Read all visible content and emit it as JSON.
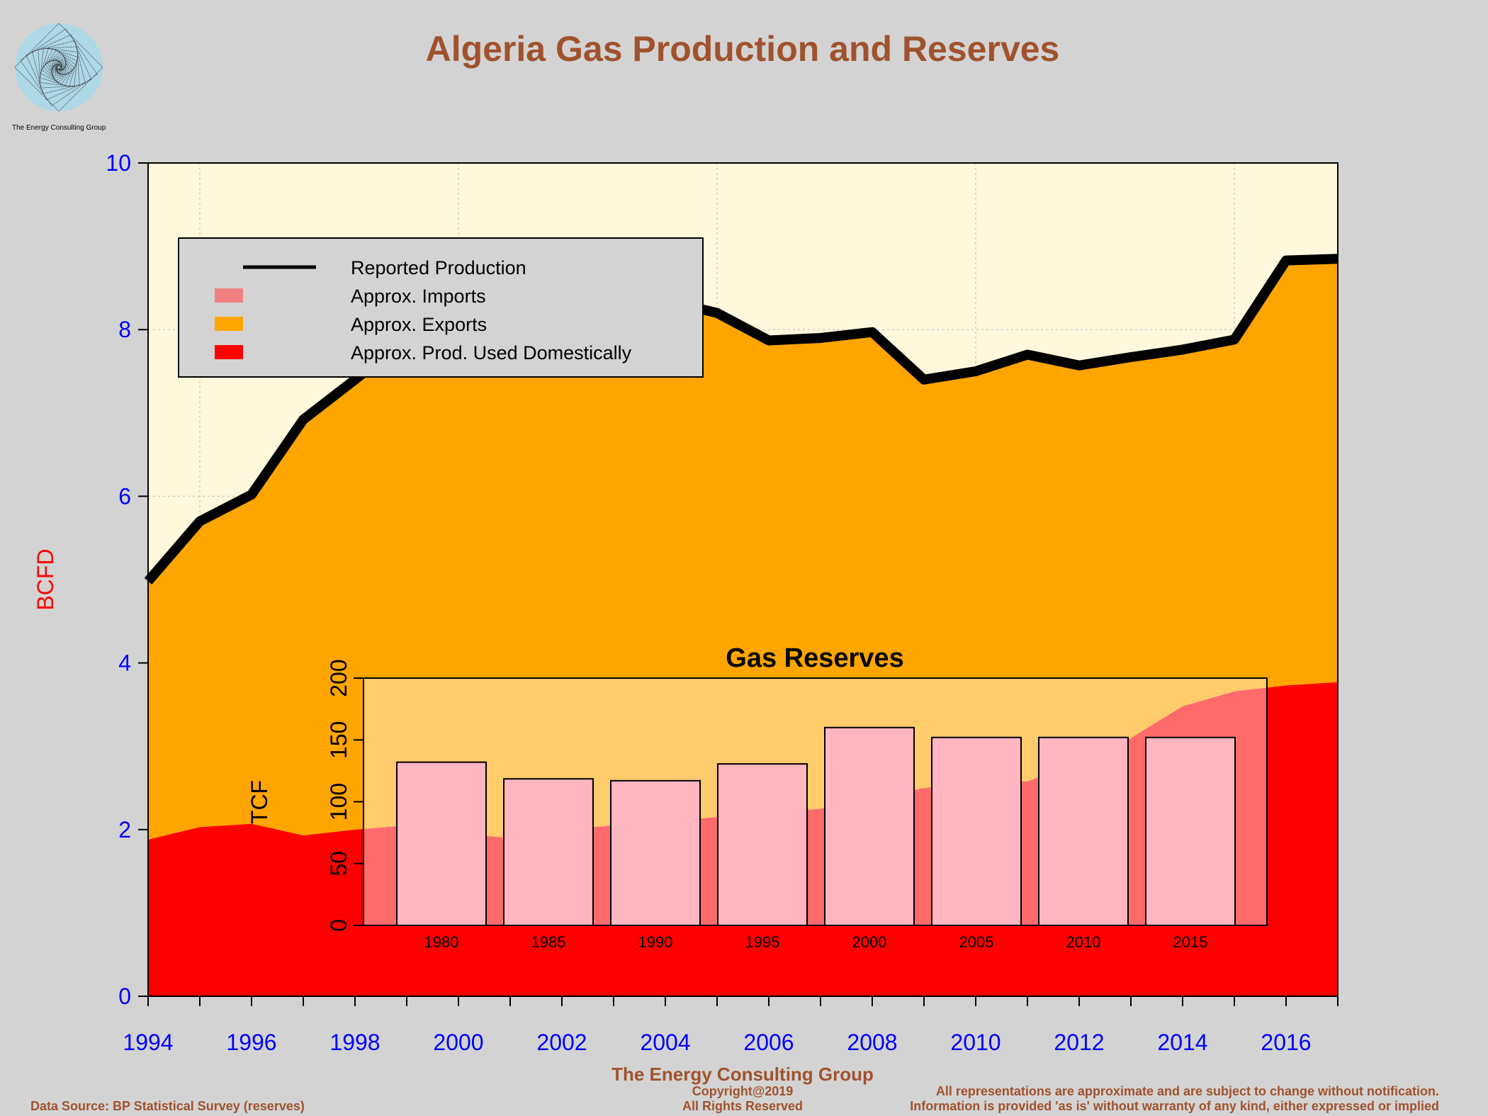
{
  "header": {
    "title": "Algeria Gas Production and Reserves",
    "logo_text": "The Energy Consulting Group"
  },
  "footer": {
    "company": "The Energy Consulting Group",
    "copyright": "Copyright@2019",
    "rights": "All Rights Reserved",
    "data_source": "Data Source: BP Statistical Survey (reserves)",
    "disclaimer_1": "All representations are approximate and are subject to change without notification.",
    "disclaimer_2": "Information is provided 'as is' without warranty of any kind, either expressed or implied"
  },
  "colors": {
    "title": "#A0522D",
    "axis_labels": "#0000FF",
    "ylabel": "#FF0000",
    "background_plot": "#FFF8DC",
    "production_line": "#000000",
    "imports": "#F08080",
    "exports": "#FFA500",
    "domestic": "#FF0000",
    "reserves_bar": "#FFB6C1"
  },
  "chart_data": [
    {
      "type": "area",
      "title": "",
      "xlabel": "",
      "ylabel": "BCFD",
      "xlim": [
        1994,
        2017
      ],
      "ylim": [
        0,
        10
      ],
      "x_ticks": [
        1994,
        1996,
        1998,
        2000,
        2002,
        2004,
        2006,
        2008,
        2010,
        2012,
        2014,
        2016
      ],
      "y_ticks": [
        0,
        2,
        4,
        6,
        8,
        10
      ],
      "grid": true,
      "legend_placement": "top-left",
      "x": [
        1994,
        1995,
        1996,
        1997,
        1998,
        1999,
        2000,
        2001,
        2002,
        2003,
        2004,
        2005,
        2006,
        2007,
        2008,
        2009,
        2010,
        2011,
        2012,
        2013,
        2014,
        2015,
        2016,
        2017
      ],
      "series": [
        {
          "name": "Reported Production",
          "kind": "line",
          "values": [
            4.98,
            5.7,
            6.02,
            6.92,
            7.4,
            7.9,
            8.1,
            7.6,
            7.8,
            8.0,
            8.35,
            8.2,
            7.87,
            7.9,
            7.97,
            7.4,
            7.5,
            7.7,
            7.57,
            7.67,
            7.76,
            7.88,
            8.83,
            8.85
          ]
        },
        {
          "name": "Approx. Imports",
          "kind": "area",
          "values": [
            0,
            0,
            0,
            0,
            0,
            0,
            0,
            0,
            0,
            0,
            0,
            0,
            0,
            0,
            0,
            0,
            0,
            0,
            0,
            0,
            0,
            0,
            0,
            0
          ]
        },
        {
          "name": "Approx. Exports",
          "kind": "area",
          "values": [
            3.1,
            3.67,
            3.95,
            4.99,
            5.4,
            5.85,
            6.15,
            5.7,
            5.8,
            5.95,
            6.25,
            6.05,
            5.67,
            5.65,
            5.6,
            4.9,
            4.95,
            5.12,
            4.77,
            4.57,
            4.28,
            4.22,
            5.1,
            5.08
          ]
        },
        {
          "name": "Approx. Prod. Used Domestically",
          "kind": "area",
          "values": [
            1.88,
            2.03,
            2.07,
            1.93,
            2.0,
            2.05,
            1.95,
            1.9,
            2.0,
            2.05,
            2.1,
            2.15,
            2.2,
            2.25,
            2.37,
            2.5,
            2.55,
            2.58,
            2.8,
            3.1,
            3.48,
            3.66,
            3.73,
            3.77
          ]
        }
      ]
    },
    {
      "type": "bar",
      "title": "Gas Reserves",
      "xlabel": "",
      "ylabel": "TCF",
      "ylim": [
        0,
        200
      ],
      "y_ticks": [
        0,
        50,
        100,
        150,
        200
      ],
      "categories": [
        "1980",
        "1985",
        "1990",
        "1995",
        "2000",
        "2005",
        "2010",
        "2015"
      ],
      "values": [
        132,
        118.5,
        117,
        130.6,
        160,
        152,
        152,
        152
      ]
    }
  ]
}
